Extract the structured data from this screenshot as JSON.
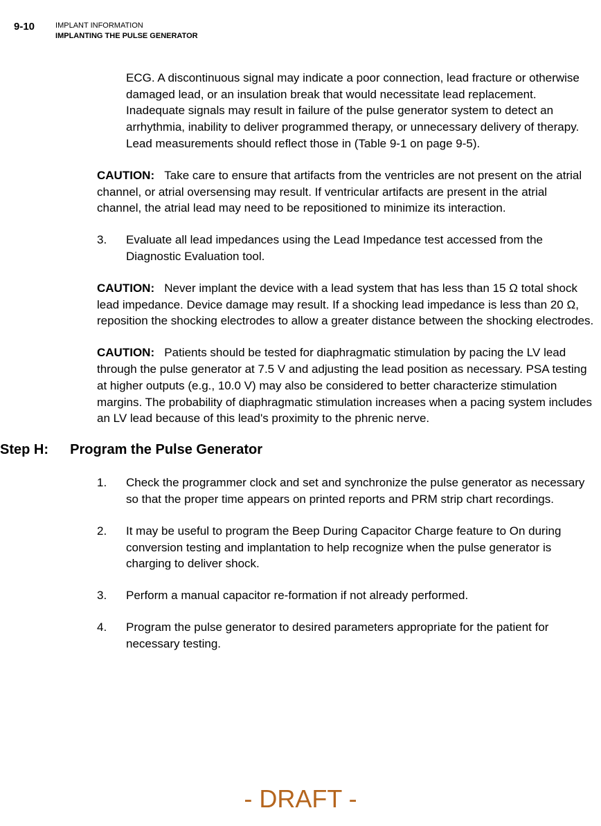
{
  "header": {
    "page_number": "9-10",
    "line1": "IMPLANT INFORMATION",
    "line2": "IMPLANTING THE PULSE GENERATOR"
  },
  "para_intro": "ECG. A discontinuous signal may indicate a poor connection, lead fracture or otherwise damaged lead, or an insulation break that would necessitate lead replacement. Inadequate signals may result in failure of the pulse generator system to detect an arrhythmia, inability to deliver programmed therapy, or unnecessary delivery of therapy. Lead measurements should reflect those in (Table 9-1 on page 9-5).",
  "caution1": {
    "label": "CAUTION:",
    "text": "Take care to ensure that artifacts from the ventricles are not present on the atrial channel, or atrial oversensing may result. If ventricular artifacts are present in the atrial channel, the atrial lead may need to be repositioned to minimize its interaction."
  },
  "item3": {
    "num": "3.",
    "text": "Evaluate all lead impedances using the Lead Impedance test accessed from the Diagnostic Evaluation tool."
  },
  "caution2": {
    "label": "CAUTION:",
    "text": "Never implant the device with a lead system that has less than 15 Ω total shock lead impedance. Device damage may result. If a shocking lead impedance is less than 20 Ω, reposition the shocking electrodes to allow a greater distance between the shocking electrodes."
  },
  "caution3": {
    "label": "CAUTION:",
    "text": "Patients should be tested for diaphragmatic stimulation by pacing the LV lead through the pulse generator at 7.5 V and adjusting the lead position as necessary. PSA testing at higher outputs (e.g., 10.0 V) may also be considered to better characterize stimulation margins. The probability of diaphragmatic stimulation increases when a pacing system includes an LV lead because of this lead's proximity to the phrenic nerve."
  },
  "step_h": {
    "label": "Step H:",
    "title": "Program the Pulse Generator"
  },
  "h1": {
    "num": "1.",
    "text": "Check the programmer clock and set and synchronize the pulse generator as necessary so that the proper time appears on printed reports and PRM strip chart recordings."
  },
  "h2": {
    "num": "2.",
    "text": "It may be useful to program the Beep During Capacitor Charge feature to On during conversion testing and implantation to help recognize when the pulse generator is charging to deliver shock."
  },
  "h3": {
    "num": "3.",
    "text": "Perform a manual capacitor re-formation if not already performed."
  },
  "h4": {
    "num": "4.",
    "text": "Program the pulse generator to desired parameters appropriate for the patient for necessary testing."
  },
  "draft": "- DRAFT -",
  "colors": {
    "text": "#000000",
    "draft": "#b5651d",
    "background": "#ffffff"
  },
  "fonts": {
    "body_size": 17,
    "header_small_size": 11,
    "page_num_size": 15,
    "heading_size": 20,
    "draft_size": 36
  }
}
